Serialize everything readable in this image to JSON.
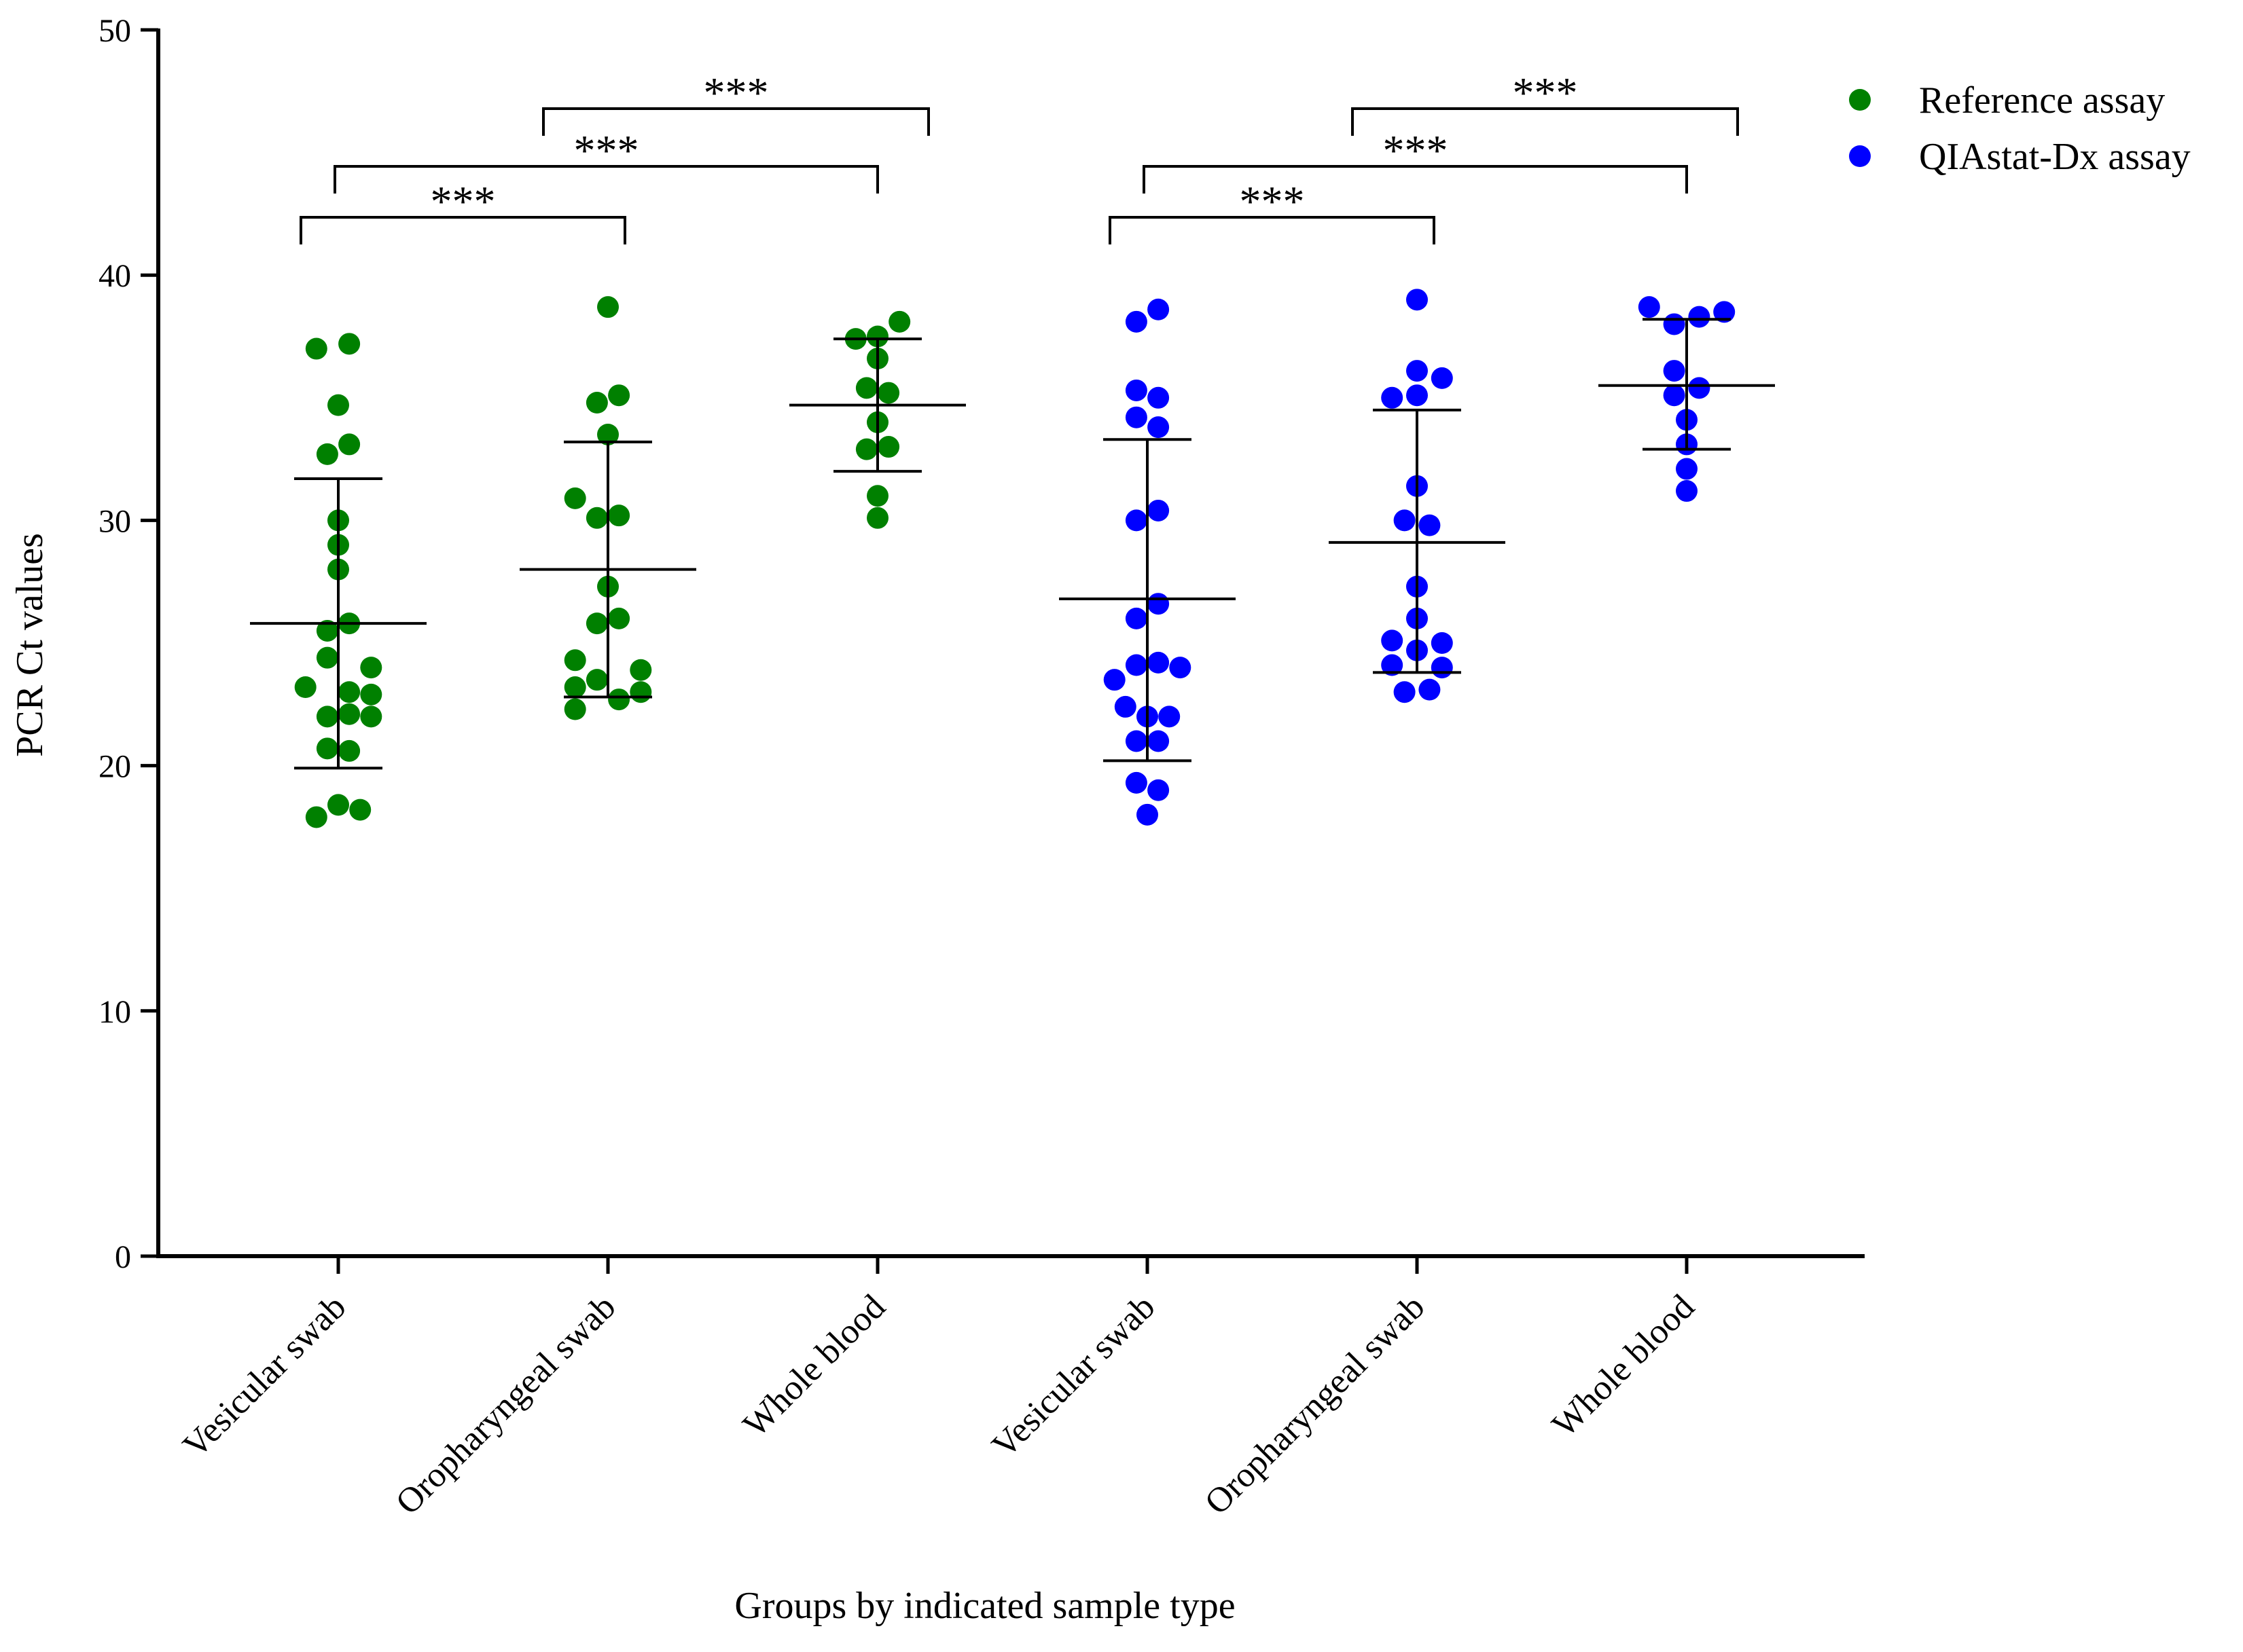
{
  "chart_data": {
    "type": "scatter",
    "xlabel": "Groups by indicated sample type",
    "ylabel": "PCR Ct values",
    "ylim": [
      0,
      50
    ],
    "yticks": [
      0,
      10,
      20,
      30,
      40,
      50
    ],
    "grid": false,
    "legend_position": "top-right",
    "categories": [
      "Vesicular swab",
      "Oropharyngeal swab",
      "Whole blood",
      "Vesicular swab",
      "Oropharyngeal swab",
      "Whole blood"
    ],
    "series": [
      {
        "name": "Reference assay",
        "color": "#008000",
        "groups": [
          {
            "category_index": 0,
            "mean": 25.8,
            "sd_low": 19.9,
            "sd_high": 31.7,
            "points": [
              {
                "offset": -0.14,
                "y": 37.0
              },
              {
                "offset": 0.07,
                "y": 37.2
              },
              {
                "offset": 0.0,
                "y": 34.7
              },
              {
                "offset": -0.07,
                "y": 32.7
              },
              {
                "offset": 0.07,
                "y": 33.1
              },
              {
                "offset": 0.0,
                "y": 30.0
              },
              {
                "offset": 0.0,
                "y": 29.0
              },
              {
                "offset": 0.0,
                "y": 28.0
              },
              {
                "offset": -0.07,
                "y": 25.5
              },
              {
                "offset": 0.07,
                "y": 25.8
              },
              {
                "offset": -0.07,
                "y": 24.4
              },
              {
                "offset": 0.21,
                "y": 24.0
              },
              {
                "offset": -0.21,
                "y": 23.2
              },
              {
                "offset": 0.07,
                "y": 23.0
              },
              {
                "offset": 0.21,
                "y": 22.9
              },
              {
                "offset": -0.07,
                "y": 22.0
              },
              {
                "offset": 0.07,
                "y": 22.1
              },
              {
                "offset": 0.21,
                "y": 22.0
              },
              {
                "offset": -0.07,
                "y": 20.7
              },
              {
                "offset": 0.07,
                "y": 20.6
              },
              {
                "offset": 0.0,
                "y": 18.4
              },
              {
                "offset": -0.14,
                "y": 17.9
              },
              {
                "offset": 0.14,
                "y": 18.2
              }
            ]
          },
          {
            "category_index": 1,
            "mean": 28.0,
            "sd_low": 22.8,
            "sd_high": 33.2,
            "points": [
              {
                "offset": 0.0,
                "y": 38.7
              },
              {
                "offset": -0.07,
                "y": 34.8
              },
              {
                "offset": 0.07,
                "y": 35.1
              },
              {
                "offset": 0.0,
                "y": 33.5
              },
              {
                "offset": -0.21,
                "y": 30.9
              },
              {
                "offset": -0.07,
                "y": 30.1
              },
              {
                "offset": 0.07,
                "y": 30.2
              },
              {
                "offset": 0.0,
                "y": 27.3
              },
              {
                "offset": -0.07,
                "y": 25.8
              },
              {
                "offset": 0.07,
                "y": 26.0
              },
              {
                "offset": -0.21,
                "y": 24.3
              },
              {
                "offset": 0.21,
                "y": 23.9
              },
              {
                "offset": -0.07,
                "y": 23.5
              },
              {
                "offset": -0.21,
                "y": 23.2
              },
              {
                "offset": 0.21,
                "y": 23.0
              },
              {
                "offset": 0.07,
                "y": 22.7
              },
              {
                "offset": -0.21,
                "y": 22.3
              }
            ]
          },
          {
            "category_index": 2,
            "mean": 34.7,
            "sd_low": 32.0,
            "sd_high": 37.4,
            "points": [
              {
                "offset": -0.14,
                "y": 37.4
              },
              {
                "offset": 0.0,
                "y": 37.5
              },
              {
                "offset": 0.14,
                "y": 38.1
              },
              {
                "offset": 0.0,
                "y": 36.6
              },
              {
                "offset": -0.07,
                "y": 35.4
              },
              {
                "offset": 0.07,
                "y": 35.2
              },
              {
                "offset": 0.0,
                "y": 34.0
              },
              {
                "offset": -0.07,
                "y": 32.9
              },
              {
                "offset": 0.07,
                "y": 33.0
              },
              {
                "offset": 0.0,
                "y": 31.0
              },
              {
                "offset": 0.0,
                "y": 30.1
              }
            ]
          }
        ]
      },
      {
        "name": "QIAstat-Dx assay",
        "color": "#0000ff",
        "groups": [
          {
            "category_index": 3,
            "mean": 26.8,
            "sd_low": 20.2,
            "sd_high": 33.3,
            "points": [
              {
                "offset": -0.07,
                "y": 38.1
              },
              {
                "offset": 0.07,
                "y": 38.6
              },
              {
                "offset": -0.07,
                "y": 35.3
              },
              {
                "offset": 0.07,
                "y": 35.0
              },
              {
                "offset": -0.07,
                "y": 34.2
              },
              {
                "offset": 0.07,
                "y": 33.8
              },
              {
                "offset": -0.07,
                "y": 30.0
              },
              {
                "offset": 0.07,
                "y": 30.4
              },
              {
                "offset": 0.07,
                "y": 26.6
              },
              {
                "offset": -0.07,
                "y": 26.0
              },
              {
                "offset": -0.07,
                "y": 24.1
              },
              {
                "offset": 0.07,
                "y": 24.2
              },
              {
                "offset": 0.21,
                "y": 24.0
              },
              {
                "offset": -0.21,
                "y": 23.5
              },
              {
                "offset": -0.14,
                "y": 22.4
              },
              {
                "offset": 0.0,
                "y": 22.0
              },
              {
                "offset": 0.14,
                "y": 22.0
              },
              {
                "offset": -0.07,
                "y": 21.0
              },
              {
                "offset": 0.07,
                "y": 21.0
              },
              {
                "offset": -0.07,
                "y": 19.3
              },
              {
                "offset": 0.07,
                "y": 19.0
              },
              {
                "offset": 0.0,
                "y": 18.0
              }
            ]
          },
          {
            "category_index": 4,
            "mean": 29.1,
            "sd_low": 23.8,
            "sd_high": 34.5,
            "points": [
              {
                "offset": 0.0,
                "y": 39.0
              },
              {
                "offset": 0.0,
                "y": 36.1
              },
              {
                "offset": 0.16,
                "y": 35.8
              },
              {
                "offset": -0.16,
                "y": 35.0
              },
              {
                "offset": 0.0,
                "y": 35.1
              },
              {
                "offset": 0.0,
                "y": 31.4
              },
              {
                "offset": -0.08,
                "y": 30.0
              },
              {
                "offset": 0.08,
                "y": 29.8
              },
              {
                "offset": 0.0,
                "y": 27.3
              },
              {
                "offset": 0.0,
                "y": 26.0
              },
              {
                "offset": -0.16,
                "y": 25.1
              },
              {
                "offset": 0.16,
                "y": 25.0
              },
              {
                "offset": 0.0,
                "y": 24.7
              },
              {
                "offset": -0.16,
                "y": 24.1
              },
              {
                "offset": 0.16,
                "y": 24.0
              },
              {
                "offset": -0.08,
                "y": 23.0
              },
              {
                "offset": 0.08,
                "y": 23.1
              }
            ]
          },
          {
            "category_index": 5,
            "mean": 35.5,
            "sd_low": 32.9,
            "sd_high": 38.2,
            "points": [
              {
                "offset": -0.24,
                "y": 38.7
              },
              {
                "offset": 0.08,
                "y": 38.3
              },
              {
                "offset": 0.24,
                "y": 38.5
              },
              {
                "offset": -0.08,
                "y": 38.0
              },
              {
                "offset": -0.08,
                "y": 36.1
              },
              {
                "offset": 0.08,
                "y": 35.4
              },
              {
                "offset": -0.08,
                "y": 35.1
              },
              {
                "offset": 0.0,
                "y": 34.1
              },
              {
                "offset": 0.0,
                "y": 33.1
              },
              {
                "offset": 0.0,
                "y": 32.1
              },
              {
                "offset": 0.0,
                "y": 31.2
              }
            ]
          }
        ]
      }
    ],
    "comparisons": [
      {
        "from": 0,
        "to": 1,
        "level": 0,
        "label": "***"
      },
      {
        "from": 0,
        "to": 2,
        "level": 1,
        "label": "***"
      },
      {
        "from": 1,
        "to": 2,
        "level": 2,
        "label": "***"
      },
      {
        "from": 3,
        "to": 4,
        "level": 0,
        "label": "***"
      },
      {
        "from": 3,
        "to": 5,
        "level": 1,
        "label": "***"
      },
      {
        "from": 4,
        "to": 5,
        "level": 2,
        "label": "***"
      }
    ]
  }
}
